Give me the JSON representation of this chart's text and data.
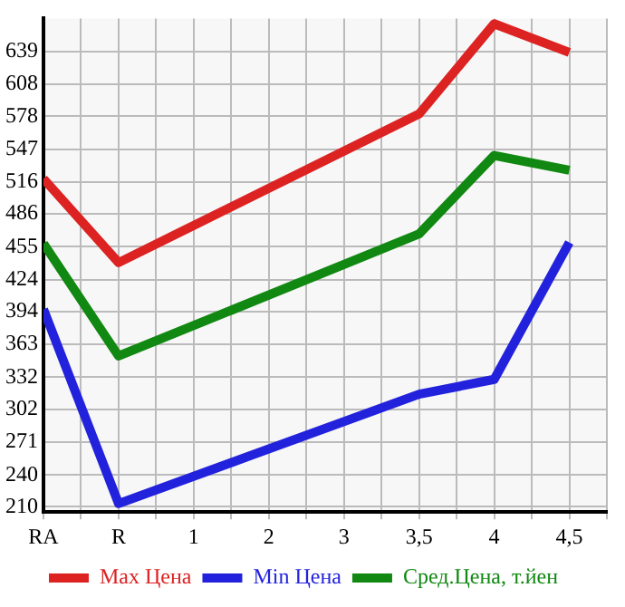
{
  "chart_data": {
    "type": "line",
    "categories": [
      "RA",
      "R",
      "1",
      "2",
      "3",
      "3,5",
      "4",
      "4,5"
    ],
    "series": [
      {
        "name": "Max Цена",
        "color": "#dd2222",
        "values": [
          519,
          440,
          null,
          null,
          null,
          580,
          665,
          638
        ]
      },
      {
        "name": "Min Цена",
        "color": "#2222dd",
        "values": [
          396,
          213,
          null,
          null,
          null,
          316,
          330,
          459
        ]
      },
      {
        "name": "Сред.Цена, т.йен",
        "color": "#118811",
        "values": [
          458,
          352,
          null,
          null,
          null,
          467,
          541,
          527
        ]
      }
    ],
    "ylim": [
      205,
      670
    ],
    "yticks": [
      210,
      240,
      271,
      302,
      332,
      363,
      394,
      424,
      455,
      486,
      516,
      547,
      578,
      608,
      639
    ],
    "grid": true,
    "legend": "bottom",
    "marker": "none",
    "line_style": "solid"
  }
}
